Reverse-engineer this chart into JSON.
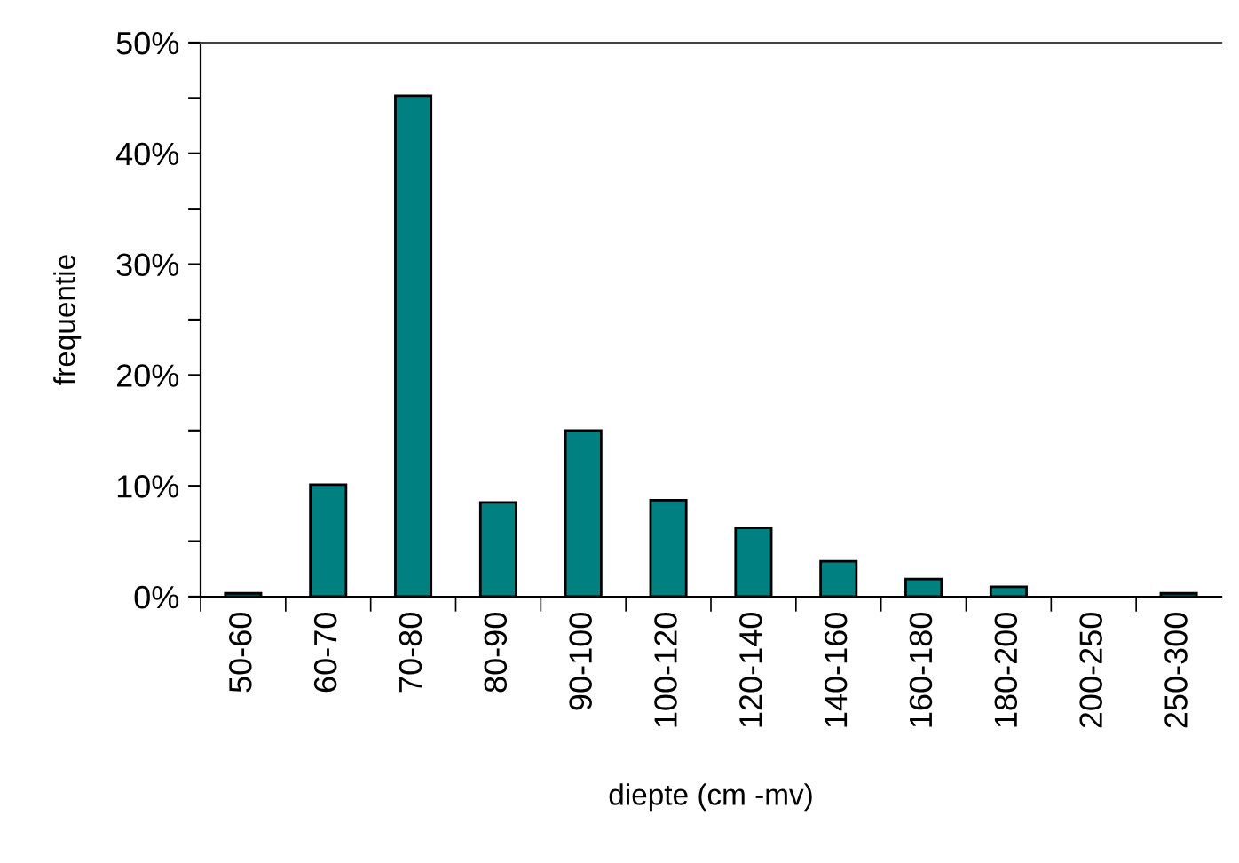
{
  "chart_data": {
    "type": "bar",
    "xlabel": "diepte (cm -mv)",
    "ylabel": "frequentie",
    "categories": [
      "50-60",
      "60-70",
      "70-80",
      "80-90",
      "90-100",
      "100-120",
      "120-140",
      "140-160",
      "160-180",
      "180-200",
      "200-250",
      "250-300"
    ],
    "values": [
      0.3,
      10.1,
      45.2,
      8.5,
      15.0,
      8.7,
      6.2,
      3.2,
      1.6,
      0.9,
      0,
      0.3
    ],
    "color": "#008080",
    "ylim": [
      0,
      50
    ],
    "yticks": [
      {
        "value": 0,
        "label": "0%"
      },
      {
        "value": 5,
        "label": null
      },
      {
        "value": 10,
        "label": "10%"
      },
      {
        "value": 15,
        "label": null
      },
      {
        "value": 20,
        "label": "20%"
      },
      {
        "value": 25,
        "label": null
      },
      {
        "value": 30,
        "label": "30%"
      },
      {
        "value": 35,
        "label": null
      },
      {
        "value": 40,
        "label": "40%"
      },
      {
        "value": 45,
        "label": null
      },
      {
        "value": 50,
        "label": "50%"
      }
    ],
    "grid": false,
    "legend": false
  }
}
